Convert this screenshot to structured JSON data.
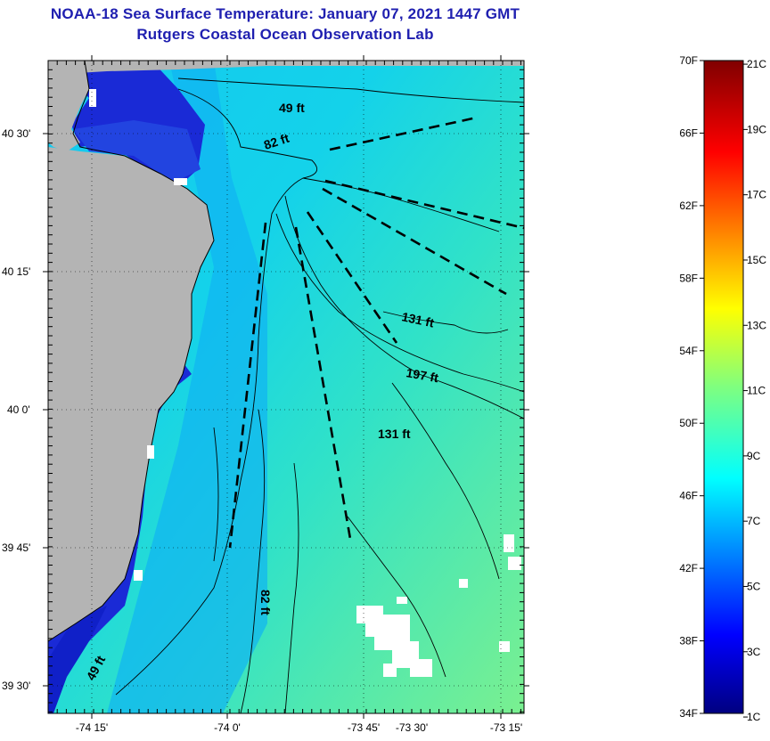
{
  "title": {
    "line1": "NOAA-18 Sea Surface Temperature:  January 07, 2021 1447 GMT",
    "line2": "Rutgers Coastal Ocean Observation Lab"
  },
  "map": {
    "lat_labels": [
      {
        "label": "40 30'",
        "lat": 40.5
      },
      {
        "label": "40 15'",
        "lat": 40.25
      },
      {
        "label": "40 0'",
        "lat": 40.0
      },
      {
        "label": "39 45'",
        "lat": 39.75
      },
      {
        "label": "39 30'",
        "lat": 39.5
      }
    ],
    "lon_labels": [
      {
        "label": "-74 15'",
        "lon": -74.25
      },
      {
        "label": "-74 0'",
        "lon": -74.0
      },
      {
        "label": "-73 45'",
        "lon": -73.75
      },
      {
        "label": "-73 30'",
        "lon": -73.5
      },
      {
        "label": "-73 15'",
        "lon": -73.25
      }
    ],
    "depth_labels": [
      "49 ft",
      "82 ft",
      "131 ft",
      "197 ft",
      "131 ft",
      "82 ft",
      "49 ft"
    ],
    "colors": {
      "land": "#b4b4b4",
      "cloud": "#ffffff",
      "cold_nearshore": "#1a2ad6",
      "mid_water": "#00b8ee",
      "offshore": "#5ee8a8"
    }
  },
  "colorbar": {
    "fahrenheit": [
      "70F",
      "66F",
      "62F",
      "58F",
      "54F",
      "50F",
      "46F",
      "42F",
      "38F",
      "34F"
    ],
    "celsius": [
      "21C",
      "19C",
      "17C",
      "15C",
      "13C",
      "11C",
      "9C",
      "7C",
      "5C",
      "3C",
      "1C"
    ]
  }
}
